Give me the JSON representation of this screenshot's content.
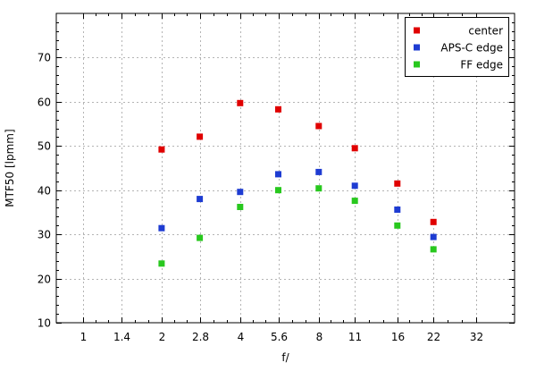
{
  "chart_data": {
    "type": "scatter",
    "title": "",
    "xlabel": "f/",
    "ylabel": "MTF50 [lpmm]",
    "x_scale": "log2",
    "x_ticks": [
      "1",
      "1.4",
      "2",
      "2.8",
      "4",
      "5.6",
      "8",
      "11",
      "16",
      "22",
      "32"
    ],
    "x_range": [
      0.79,
      45
    ],
    "ylim": [
      10,
      80
    ],
    "y_ticks": [
      10,
      20,
      30,
      40,
      50,
      60,
      70
    ],
    "grid": true,
    "legend_position": "top-right",
    "series": [
      {
        "name": "center",
        "color": "#e00000",
        "points": [
          {
            "x": 2,
            "y": 49.2
          },
          {
            "x": 2.8,
            "y": 52.1
          },
          {
            "x": 4,
            "y": 59.7
          },
          {
            "x": 5.6,
            "y": 58.3
          },
          {
            "x": 8,
            "y": 54.5
          },
          {
            "x": 11,
            "y": 49.5
          },
          {
            "x": 16,
            "y": 41.5
          },
          {
            "x": 22,
            "y": 32.8
          }
        ]
      },
      {
        "name": "APS-C edge",
        "color": "#1e3cd2",
        "points": [
          {
            "x": 2,
            "y": 31.4
          },
          {
            "x": 2.8,
            "y": 38.0
          },
          {
            "x": 4,
            "y": 39.6
          },
          {
            "x": 5.6,
            "y": 43.6
          },
          {
            "x": 8,
            "y": 44.1
          },
          {
            "x": 11,
            "y": 41.0
          },
          {
            "x": 16,
            "y": 35.6
          },
          {
            "x": 22,
            "y": 29.4
          }
        ]
      },
      {
        "name": "FF edge",
        "color": "#28c81e",
        "points": [
          {
            "x": 2,
            "y": 23.4
          },
          {
            "x": 2.8,
            "y": 29.2
          },
          {
            "x": 4,
            "y": 36.2
          },
          {
            "x": 5.6,
            "y": 40.0
          },
          {
            "x": 8,
            "y": 40.4
          },
          {
            "x": 11,
            "y": 37.6
          },
          {
            "x": 16,
            "y": 32.0
          },
          {
            "x": 22,
            "y": 26.6
          }
        ]
      }
    ]
  }
}
